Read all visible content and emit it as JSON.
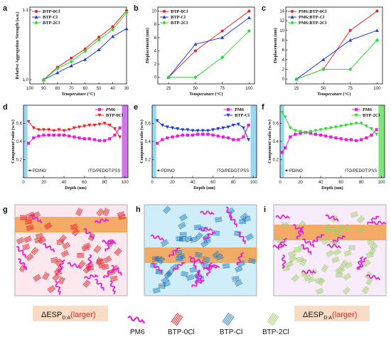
{
  "colors": {
    "btp0cl": "#e8262b",
    "btpcl": "#1f3fd6",
    "btp2cl": "#33d93a",
    "pm6": "#e61ed8",
    "cl_blue": "#2f7fc0",
    "cl2_green": "#9fcf6a",
    "band": "#f3a04c"
  },
  "chart_data": [
    {
      "panel": "a",
      "type": "line",
      "xlabel": "Temperature (°C)",
      "ylabel": "Relative Aggregation Strength (a.u.)",
      "xlim": [
        100,
        30
      ],
      "ylim": [
        0.994,
        1.104
      ],
      "xticks": [
        "100",
        "90",
        "80",
        "70",
        "60",
        "50",
        "40",
        "30"
      ],
      "yticks": [
        {
          "v": 1.0,
          "t": "1.0"
        },
        {
          "v": 1.1,
          "t": "1.1"
        }
      ],
      "legend": "top-left",
      "series": [
        {
          "name": "BTP-0Cl",
          "marker": "circle",
          "x": [
            90,
            80,
            70,
            60,
            50,
            40,
            30
          ],
          "y": [
            1.0,
            1.018,
            1.031,
            1.044,
            1.061,
            1.076,
            1.099
          ]
        },
        {
          "name": "BTP-Cl",
          "marker": "triangle",
          "x": [
            90,
            80,
            70,
            60,
            50,
            40,
            30
          ],
          "y": [
            1.0,
            1.01,
            1.02,
            1.029,
            1.043,
            1.062,
            1.073
          ]
        },
        {
          "name": "BTP-2Cl",
          "marker": "diamond",
          "x": [
            90,
            80,
            70,
            60,
            50,
            40,
            30
          ],
          "y": [
            1.0,
            1.016,
            1.026,
            1.041,
            1.057,
            1.072,
            1.096
          ]
        }
      ]
    },
    {
      "panel": "b",
      "type": "line",
      "xlabel": "Temperature (°C)",
      "ylabel": "Displacement (nm)",
      "xlim": [
        15,
        105
      ],
      "ylim": [
        -1,
        10.6
      ],
      "xticks": [
        "25",
        "50",
        "75",
        "100"
      ],
      "yticks": [
        {
          "v": 0,
          "t": "0"
        },
        {
          "v": 2,
          "t": "2"
        },
        {
          "v": 4,
          "t": "4"
        },
        {
          "v": 6,
          "t": "6"
        },
        {
          "v": 8,
          "t": "8"
        },
        {
          "v": 10,
          "t": "10"
        }
      ],
      "legend": "top-left",
      "series": [
        {
          "name": "BTP-0Cl",
          "marker": "circle",
          "x": [
            25,
            50,
            75,
            100
          ],
          "y": [
            0,
            4,
            7,
            10
          ]
        },
        {
          "name": "BTP-Cl",
          "marker": "triangle",
          "x": [
            25,
            50,
            75,
            100
          ],
          "y": [
            0,
            5,
            6,
            9
          ]
        },
        {
          "name": "BTP-2Cl",
          "marker": "diamond",
          "x": [
            25,
            50,
            75,
            100
          ],
          "y": [
            0,
            0,
            3,
            7
          ]
        }
      ]
    },
    {
      "panel": "c",
      "type": "line",
      "xlabel": "Temperature (°C)",
      "ylabel": "Displacement (nm)",
      "xlim": [
        15,
        105
      ],
      "ylim": [
        -1,
        14.8
      ],
      "xticks": [
        "25",
        "50",
        "75",
        "100"
      ],
      "yticks": [
        {
          "v": 0,
          "t": "0"
        },
        {
          "v": 2,
          "t": "2"
        },
        {
          "v": 4,
          "t": "4"
        },
        {
          "v": 6,
          "t": "6"
        },
        {
          "v": 8,
          "t": "8"
        },
        {
          "v": 10,
          "t": "10"
        },
        {
          "v": 12,
          "t": "12"
        },
        {
          "v": 14,
          "t": "14"
        }
      ],
      "legend": "top-left",
      "series": [
        {
          "name": "PM6:BTP-0Cl",
          "marker": "circle",
          "x": [
            25,
            50,
            75,
            100
          ],
          "y": [
            0,
            2,
            10,
            14
          ]
        },
        {
          "name": "PM6:BTP-Cl",
          "marker": "triangle",
          "x": [
            25,
            50,
            75,
            100
          ],
          "y": [
            0,
            4,
            8,
            10
          ]
        },
        {
          "name": "PM6:BTP-2Cl",
          "marker": "diamond",
          "x": [
            25,
            50,
            75,
            100
          ],
          "y": [
            0,
            2,
            2,
            8
          ]
        }
      ]
    },
    {
      "panel": "d",
      "type": "line",
      "xlabel": "Depth (nm)",
      "ylabel": "Component ratio (w/w)",
      "xlim": [
        0,
        103
      ],
      "ylim": [
        0,
        0.8
      ],
      "xticks": [
        "0",
        "20",
        "40",
        "60",
        "80",
        "100"
      ],
      "yticks": [
        {
          "v": 0.2,
          "t": "0.2"
        },
        {
          "v": 0.4,
          "t": "0.4"
        },
        {
          "v": 0.6,
          "t": "0.6"
        }
      ],
      "left_band": 4,
      "right_band": 97,
      "right_color": "#cc66e8",
      "left_note": "PDINO",
      "right_note": "ITO/PEDOT:PSS",
      "legend": "top-right",
      "series": [
        {
          "name": "PM6",
          "marker": "square",
          "x": [
            5,
            10,
            15,
            20,
            25,
            30,
            35,
            40,
            45,
            50,
            55,
            60,
            65,
            70,
            75,
            80,
            85,
            90,
            95
          ],
          "y": [
            0.38,
            0.44,
            0.46,
            0.47,
            0.47,
            0.47,
            0.47,
            0.47,
            0.46,
            0.45,
            0.44,
            0.43,
            0.43,
            0.42,
            0.41,
            0.41,
            0.43,
            0.47,
            0.55
          ]
        },
        {
          "name": "BTP-0Cl",
          "marker": "triangle-down",
          "x": [
            5,
            10,
            15,
            20,
            25,
            30,
            35,
            40,
            45,
            50,
            55,
            60,
            65,
            70,
            75,
            80,
            85,
            90,
            95
          ],
          "y": [
            0.62,
            0.55,
            0.53,
            0.53,
            0.53,
            0.52,
            0.53,
            0.52,
            0.53,
            0.55,
            0.56,
            0.57,
            0.58,
            0.58,
            0.59,
            0.6,
            0.58,
            0.54,
            0.45
          ]
        }
      ]
    },
    {
      "panel": "e",
      "type": "line",
      "xlabel": "Depth (nm)",
      "ylabel": "Component ratio (w/w)",
      "xlim": [
        0,
        103
      ],
      "ylim": [
        0,
        0.8
      ],
      "xticks": [
        "0",
        "20",
        "40",
        "60",
        "80",
        "100"
      ],
      "yticks": [
        {
          "v": 0.2,
          "t": "0.2"
        },
        {
          "v": 0.4,
          "t": "0.4"
        },
        {
          "v": 0.6,
          "t": "0.6"
        }
      ],
      "left_band": 4,
      "right_band": 97,
      "right_color": "#8fd3f2",
      "left_note": "PDINO",
      "right_note": "ITO/PEDOT:PSS",
      "legend": "top-right",
      "series": [
        {
          "name": "PM6",
          "marker": "square",
          "x": [
            5,
            10,
            15,
            20,
            25,
            30,
            35,
            40,
            45,
            50,
            55,
            60,
            65,
            70,
            75,
            80,
            85,
            90,
            95
          ],
          "y": [
            0.38,
            0.42,
            0.44,
            0.45,
            0.46,
            0.47,
            0.47,
            0.47,
            0.48,
            0.48,
            0.48,
            0.47,
            0.46,
            0.45,
            0.44,
            0.42,
            0.42,
            0.45,
            0.58
          ]
        },
        {
          "name": "BTP-Cl",
          "marker": "triangle-down",
          "x": [
            5,
            10,
            15,
            20,
            25,
            30,
            35,
            40,
            45,
            50,
            55,
            60,
            65,
            70,
            75,
            80,
            85,
            90,
            95
          ],
          "y": [
            0.63,
            0.58,
            0.56,
            0.55,
            0.54,
            0.53,
            0.53,
            0.52,
            0.52,
            0.52,
            0.52,
            0.53,
            0.54,
            0.55,
            0.56,
            0.58,
            0.59,
            0.55,
            0.42
          ]
        }
      ]
    },
    {
      "panel": "f",
      "type": "line",
      "xlabel": "Depth (nm)",
      "ylabel": "Component ratio (w/w)",
      "xlim": [
        0,
        103
      ],
      "ylim": [
        0,
        0.8
      ],
      "xticks": [
        "0",
        "20",
        "40",
        "60",
        "80",
        "100"
      ],
      "yticks": [
        {
          "v": 0.2,
          "t": "0.2"
        },
        {
          "v": 0.4,
          "t": "0.4"
        },
        {
          "v": 0.6,
          "t": "0.6"
        }
      ],
      "left_band": 4,
      "right_band": 97,
      "right_color": "#6fe26c",
      "left_note": "PDINO",
      "right_note": "ITO/PEDOT:PSS",
      "legend": "top-right",
      "series": [
        {
          "name": "PM6",
          "marker": "square",
          "x": [
            2,
            5,
            10,
            15,
            20,
            25,
            30,
            35,
            40,
            45,
            50,
            55,
            60,
            65,
            70,
            75,
            80,
            85,
            90,
            95
          ],
          "y": [
            0.28,
            0.33,
            0.45,
            0.48,
            0.49,
            0.5,
            0.49,
            0.48,
            0.47,
            0.46,
            0.45,
            0.44,
            0.43,
            0.42,
            0.42,
            0.41,
            0.42,
            0.44,
            0.47,
            0.53
          ]
        },
        {
          "name": "BTP-2Cl",
          "marker": "triangle-down",
          "x": [
            2,
            5,
            10,
            15,
            20,
            25,
            30,
            35,
            40,
            45,
            50,
            55,
            60,
            65,
            70,
            75,
            80,
            85,
            90,
            95
          ],
          "y": [
            0.72,
            0.67,
            0.55,
            0.52,
            0.51,
            0.5,
            0.51,
            0.52,
            0.53,
            0.54,
            0.55,
            0.56,
            0.57,
            0.58,
            0.59,
            0.6,
            0.6,
            0.57,
            0.54,
            0.48
          ]
        }
      ]
    }
  ],
  "schematic": {
    "g": {
      "label": "g",
      "delta": "ΔESP",
      "sub": "D:A",
      "larger": "(larger)"
    },
    "h": {
      "label": "h"
    },
    "i": {
      "label": "i",
      "delta": "ΔESP",
      "sub": "D:A",
      "larger": "(larger)"
    }
  },
  "legend_bottom": {
    "pm6": "PM6",
    "btp0cl": "BTP-0Cl",
    "btpcl": "BTP-Cl",
    "btp2cl": "BTP-2Cl"
  }
}
